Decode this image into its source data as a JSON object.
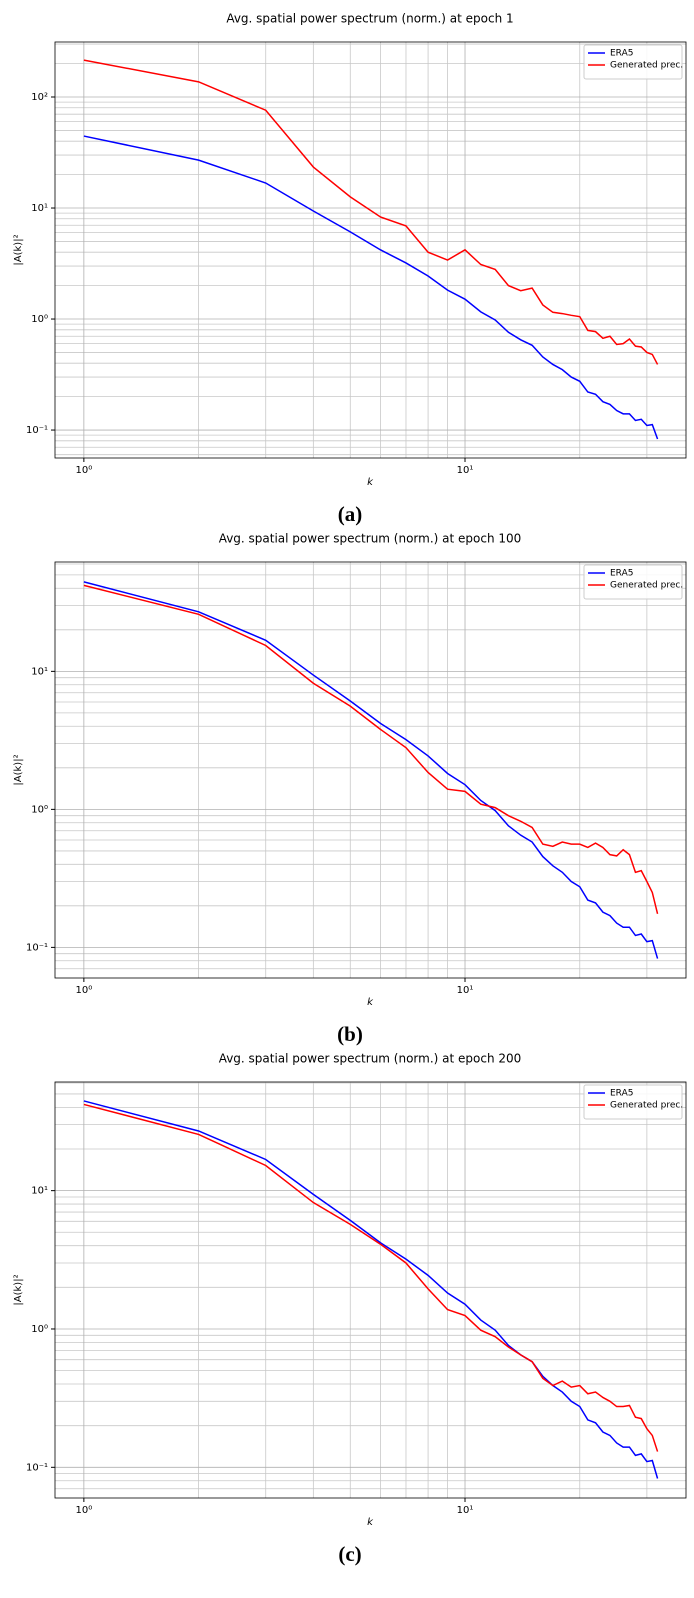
{
  "chart_data": [
    {
      "type": "line",
      "title": "Avg. spatial power spectrum (norm.) at epoch 1",
      "x_label": "k",
      "y_label": "|A(k)|²",
      "caption": "(a)",
      "x": [
        1,
        2,
        3,
        4,
        5,
        6,
        7,
        8,
        9,
        10,
        11,
        12,
        13,
        14,
        15,
        16,
        17,
        18,
        19,
        20,
        21,
        22,
        23,
        24,
        25,
        26,
        27,
        28,
        29,
        30,
        31,
        32
      ],
      "series": [
        {
          "name": "ERA5",
          "color": "#0000ff",
          "values": [
            44.5,
            27,
            16.8,
            9.4,
            6.1,
            4.2,
            3.2,
            2.44,
            1.82,
            1.51,
            1.16,
            0.98,
            0.76,
            0.65,
            0.58,
            0.455,
            0.39,
            0.35,
            0.3,
            0.275,
            0.22,
            0.21,
            0.18,
            0.17,
            0.15,
            0.14,
            0.14,
            0.122,
            0.125,
            0.11,
            0.112,
            0.083
          ]
        },
        {
          "name": "Generated prec.",
          "color": "#ff0000",
          "values": [
            215,
            137,
            76,
            23.4,
            12.6,
            8.3,
            6.9,
            4.0,
            3.4,
            4.2,
            3.1,
            2.8,
            2.0,
            1.8,
            1.9,
            1.34,
            1.15,
            1.12,
            1.08,
            1.05,
            0.79,
            0.77,
            0.67,
            0.7,
            0.59,
            0.6,
            0.66,
            0.57,
            0.56,
            0.5,
            0.48,
            0.39
          ]
        }
      ],
      "xlog": true,
      "ylog": true,
      "xlim": [
        0.84,
        38
      ],
      "ylim": [
        0.056,
        313
      ],
      "xticks": [
        {
          "value": 1,
          "label": "10⁰"
        },
        {
          "value": 10,
          "label": "10¹"
        }
      ],
      "xminorticks": [
        2,
        3,
        4,
        5,
        6,
        7,
        8,
        9,
        20,
        30
      ],
      "yticks": [
        {
          "value": 0.1,
          "label": "10⁻¹"
        },
        {
          "value": 1,
          "label": "10⁰"
        },
        {
          "value": 10,
          "label": "10¹"
        },
        {
          "value": 100,
          "label": "10²"
        }
      ],
      "yminorticks": [
        0.06,
        0.07,
        0.08,
        0.09,
        0.2,
        0.3,
        0.4,
        0.5,
        0.6,
        0.7,
        0.8,
        0.9,
        2,
        3,
        4,
        5,
        6,
        7,
        8,
        9,
        20,
        30,
        40,
        50,
        60,
        70,
        80,
        90,
        200,
        300
      ],
      "grid": true,
      "legend": "upper right"
    },
    {
      "type": "line",
      "title": "Avg. spatial power spectrum (norm.) at epoch 100",
      "x_label": "k",
      "y_label": "|A(k)|²",
      "caption": "(b)",
      "x": [
        1,
        2,
        3,
        4,
        5,
        6,
        7,
        8,
        9,
        10,
        11,
        12,
        13,
        14,
        15,
        16,
        17,
        18,
        19,
        20,
        21,
        22,
        23,
        24,
        25,
        26,
        27,
        28,
        29,
        30,
        31,
        32
      ],
      "series": [
        {
          "name": "ERA5",
          "color": "#0000ff",
          "values": [
            44.5,
            27,
            16.8,
            9.4,
            6.1,
            4.2,
            3.2,
            2.44,
            1.82,
            1.51,
            1.16,
            0.98,
            0.76,
            0.65,
            0.58,
            0.455,
            0.39,
            0.35,
            0.3,
            0.275,
            0.22,
            0.21,
            0.18,
            0.17,
            0.15,
            0.14,
            0.14,
            0.122,
            0.125,
            0.11,
            0.112,
            0.083
          ]
        },
        {
          "name": "Generated prec.",
          "color": "#ff0000",
          "values": [
            42,
            25.9,
            15.4,
            8.2,
            5.6,
            3.8,
            2.8,
            1.85,
            1.4,
            1.35,
            1.09,
            1.03,
            0.9,
            0.82,
            0.74,
            0.56,
            0.54,
            0.58,
            0.56,
            0.56,
            0.53,
            0.57,
            0.53,
            0.47,
            0.46,
            0.51,
            0.47,
            0.35,
            0.36,
            0.3,
            0.25,
            0.175
          ]
        }
      ],
      "xlog": true,
      "ylog": true,
      "xlim": [
        0.84,
        38
      ],
      "ylim": [
        0.06,
        62
      ],
      "xticks": [
        {
          "value": 1,
          "label": "10⁰"
        },
        {
          "value": 10,
          "label": "10¹"
        }
      ],
      "xminorticks": [
        2,
        3,
        4,
        5,
        6,
        7,
        8,
        9,
        20,
        30
      ],
      "yticks": [
        {
          "value": 0.1,
          "label": "10⁻¹"
        },
        {
          "value": 1,
          "label": "10⁰"
        },
        {
          "value": 10,
          "label": "10¹"
        }
      ],
      "yminorticks": [
        0.07,
        0.08,
        0.09,
        0.2,
        0.3,
        0.4,
        0.5,
        0.6,
        0.7,
        0.8,
        0.9,
        2,
        3,
        4,
        5,
        6,
        7,
        8,
        9,
        20,
        30,
        40,
        50,
        60
      ],
      "grid": true,
      "legend": "upper right"
    },
    {
      "type": "line",
      "title": "Avg. spatial power spectrum (norm.) at epoch 200",
      "x_label": "k",
      "y_label": "|A(k)|²",
      "caption": "(c)",
      "x": [
        1,
        2,
        3,
        4,
        5,
        6,
        7,
        8,
        9,
        10,
        11,
        12,
        13,
        14,
        15,
        16,
        17,
        18,
        19,
        20,
        21,
        22,
        23,
        24,
        25,
        26,
        27,
        28,
        29,
        30,
        31,
        32
      ],
      "series": [
        {
          "name": "ERA5",
          "color": "#0000ff",
          "values": [
            44.5,
            27,
            16.8,
            9.4,
            6.1,
            4.2,
            3.2,
            2.44,
            1.82,
            1.51,
            1.16,
            0.98,
            0.76,
            0.65,
            0.58,
            0.455,
            0.39,
            0.35,
            0.3,
            0.275,
            0.22,
            0.21,
            0.18,
            0.17,
            0.15,
            0.14,
            0.14,
            0.122,
            0.125,
            0.11,
            0.112,
            0.083
          ]
        },
        {
          "name": "Generated prec.",
          "color": "#ff0000",
          "values": [
            42,
            25.5,
            15.2,
            8.2,
            5.7,
            4.1,
            3.0,
            1.95,
            1.38,
            1.25,
            0.98,
            0.88,
            0.74,
            0.65,
            0.58,
            0.44,
            0.39,
            0.42,
            0.38,
            0.39,
            0.34,
            0.35,
            0.32,
            0.3,
            0.275,
            0.275,
            0.28,
            0.23,
            0.225,
            0.19,
            0.17,
            0.13
          ]
        }
      ],
      "xlog": true,
      "ylog": true,
      "xlim": [
        0.84,
        38
      ],
      "ylim": [
        0.06,
        61
      ],
      "xticks": [
        {
          "value": 1,
          "label": "10⁰"
        },
        {
          "value": 10,
          "label": "10¹"
        }
      ],
      "xminorticks": [
        2,
        3,
        4,
        5,
        6,
        7,
        8,
        9,
        20,
        30
      ],
      "yticks": [
        {
          "value": 0.1,
          "label": "10⁻¹"
        },
        {
          "value": 1,
          "label": "10⁰"
        },
        {
          "value": 10,
          "label": "10¹"
        }
      ],
      "yminorticks": [
        0.07,
        0.08,
        0.09,
        0.2,
        0.3,
        0.4,
        0.5,
        0.6,
        0.7,
        0.8,
        0.9,
        2,
        3,
        4,
        5,
        6,
        7,
        8,
        9,
        20,
        30,
        40,
        50,
        60
      ],
      "grid": true,
      "legend": "upper right"
    }
  ]
}
